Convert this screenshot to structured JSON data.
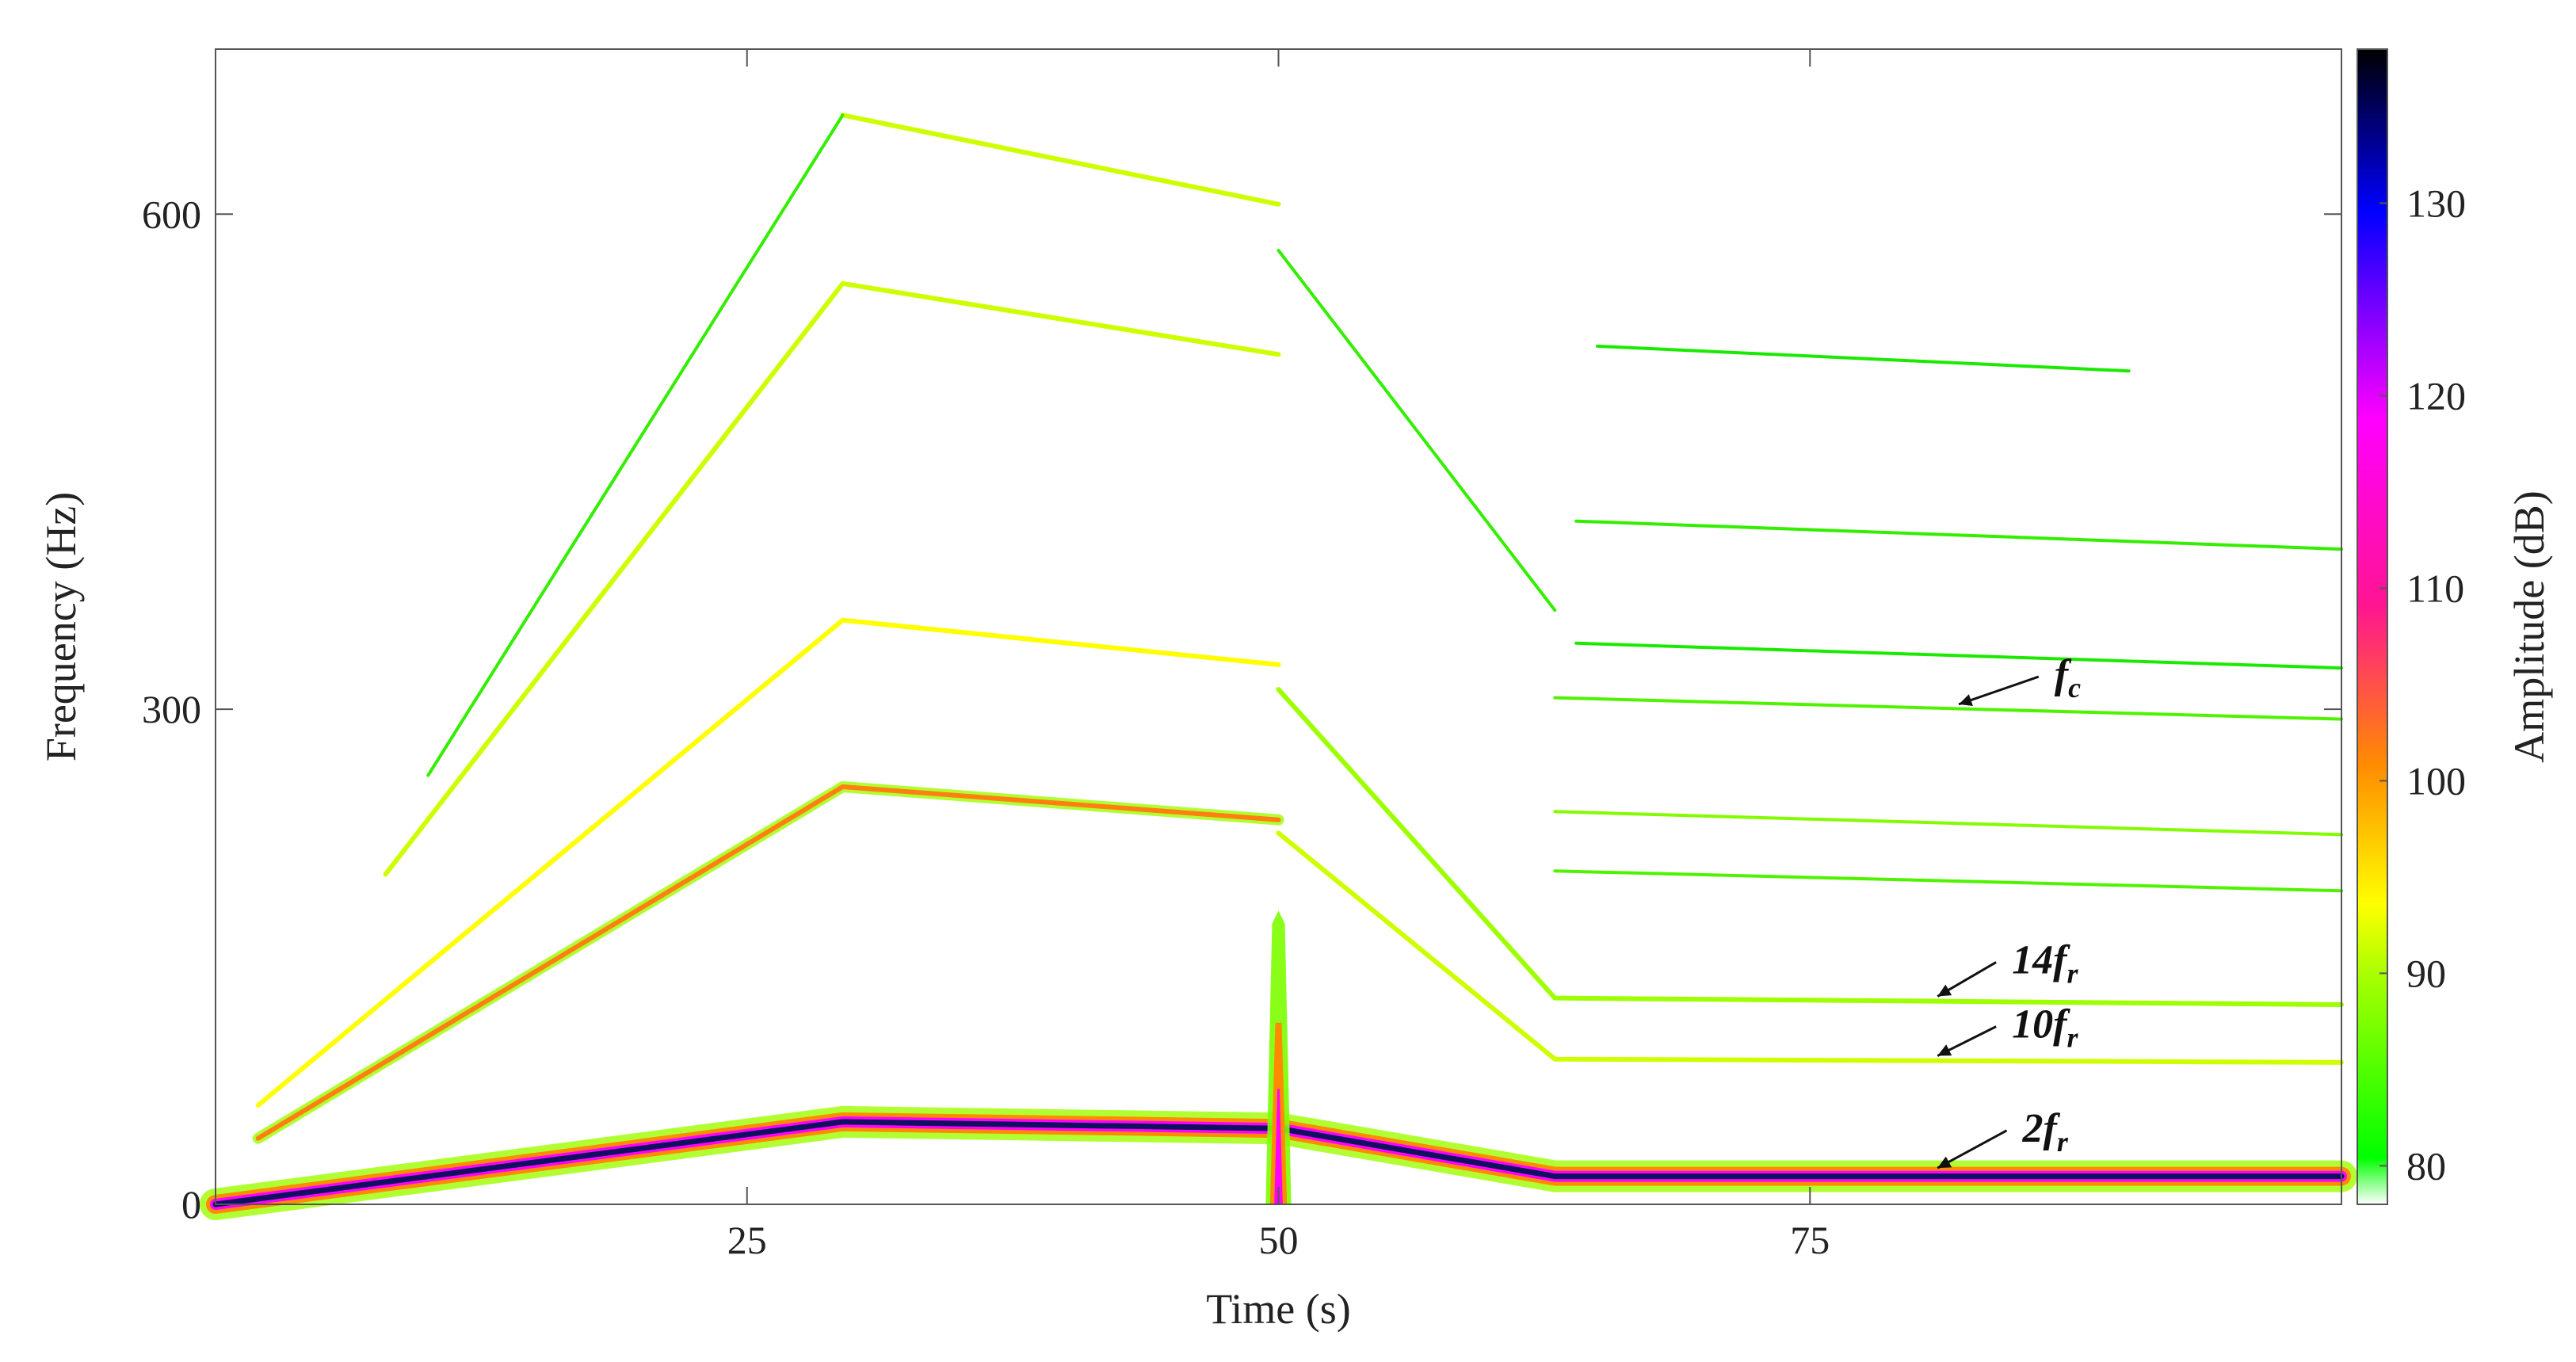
{
  "chart_data": {
    "type": "heatmap",
    "title": "",
    "xlabel": "Time (s)",
    "ylabel": "Frequency (Hz)",
    "colorbar_label": "Amplitude (dB)",
    "xlim": [
      0,
      100
    ],
    "ylim": [
      0,
      700
    ],
    "clim": [
      78,
      138
    ],
    "x_ticks": [
      25,
      50,
      75
    ],
    "x_tick_labels": [
      "25",
      "50",
      "75"
    ],
    "y_ticks": [
      0,
      300,
      600
    ],
    "y_tick_labels": [
      "0",
      "300",
      "600"
    ],
    "colorbar_ticks": [
      80,
      90,
      100,
      110,
      120,
      130
    ],
    "colorbar_tick_labels": [
      "80",
      "90",
      "100",
      "110",
      "120",
      "130"
    ],
    "colormap": [
      "#ffffff",
      "#00ff00",
      "#ffff00",
      "#ff8c00",
      "#ff1493",
      "#ff00ff",
      "#0000ff",
      "#000000"
    ],
    "grid": false,
    "series": [
      {
        "name": "",
        "points": [
          [
            0,
            0
          ],
          [
            29.5,
            50
          ],
          [
            50,
            46
          ],
          [
            63,
            17
          ],
          [
            100,
            17
          ]
        ],
        "amp": 135
      },
      {
        "name": "",
        "points": [
          [
            2,
            40
          ],
          [
            29.5,
            253
          ],
          [
            50,
            233
          ]
        ],
        "amp": 96
      },
      {
        "name": "",
        "points": [
          [
            50,
            225
          ],
          [
            63,
            88
          ],
          [
            100,
            86
          ]
        ],
        "amp": 86
      },
      {
        "name": "",
        "points": [
          [
            2,
            60
          ],
          [
            29.5,
            354
          ],
          [
            50,
            327
          ]
        ],
        "amp": 88
      },
      {
        "name": "",
        "points": [
          [
            50,
            312
          ],
          [
            63,
            125
          ],
          [
            100,
            121
          ]
        ],
        "amp": 84
      },
      {
        "name": "",
        "points": [
          [
            8,
            200
          ],
          [
            29.5,
            558
          ],
          [
            50,
            515
          ]
        ],
        "amp": 86
      },
      {
        "name": "",
        "points": [
          [
            29.5,
            660
          ],
          [
            50,
            606
          ]
        ],
        "amp": 86
      },
      {
        "name": "",
        "points": [
          [
            50,
            578
          ],
          [
            63,
            360
          ]
        ],
        "amp": 80
      },
      {
        "name": "",
        "points": [
          [
            10,
            260
          ],
          [
            29.5,
            660
          ]
        ],
        "amp": 80
      },
      {
        "name": "",
        "points": [
          [
            63,
            238
          ],
          [
            100,
            224
          ]
        ],
        "amp": 83
      },
      {
        "name": "",
        "points": [
          [
            63,
            202
          ],
          [
            100,
            190
          ]
        ],
        "amp": 81
      },
      {
        "name": "",
        "points": [
          [
            63,
            307
          ],
          [
            100,
            294
          ]
        ],
        "amp": 81
      },
      {
        "name": "",
        "points": [
          [
            64,
            414
          ],
          [
            100,
            397
          ]
        ],
        "amp": 80
      },
      {
        "name": "",
        "points": [
          [
            64,
            340
          ],
          [
            100,
            325
          ]
        ],
        "amp": 79
      },
      {
        "name": "",
        "points": [
          [
            65,
            520
          ],
          [
            90,
            505
          ]
        ],
        "amp": 79
      }
    ],
    "annotations": [
      {
        "base": "f",
        "sub": "c",
        "text_x": 86.5,
        "text_y": 313,
        "arrow_to": [
          82,
          303
        ]
      },
      {
        "base": "14f",
        "sub": "r",
        "text_x": 84.5,
        "text_y": 140,
        "arrow_to": [
          81,
          126
        ]
      },
      {
        "base": "10f",
        "sub": "r",
        "text_x": 84.5,
        "text_y": 101,
        "arrow_to": [
          81,
          90
        ]
      },
      {
        "base": "2f",
        "sub": "r",
        "text_x": 85,
        "text_y": 38,
        "arrow_to": [
          81,
          22
        ]
      }
    ]
  }
}
